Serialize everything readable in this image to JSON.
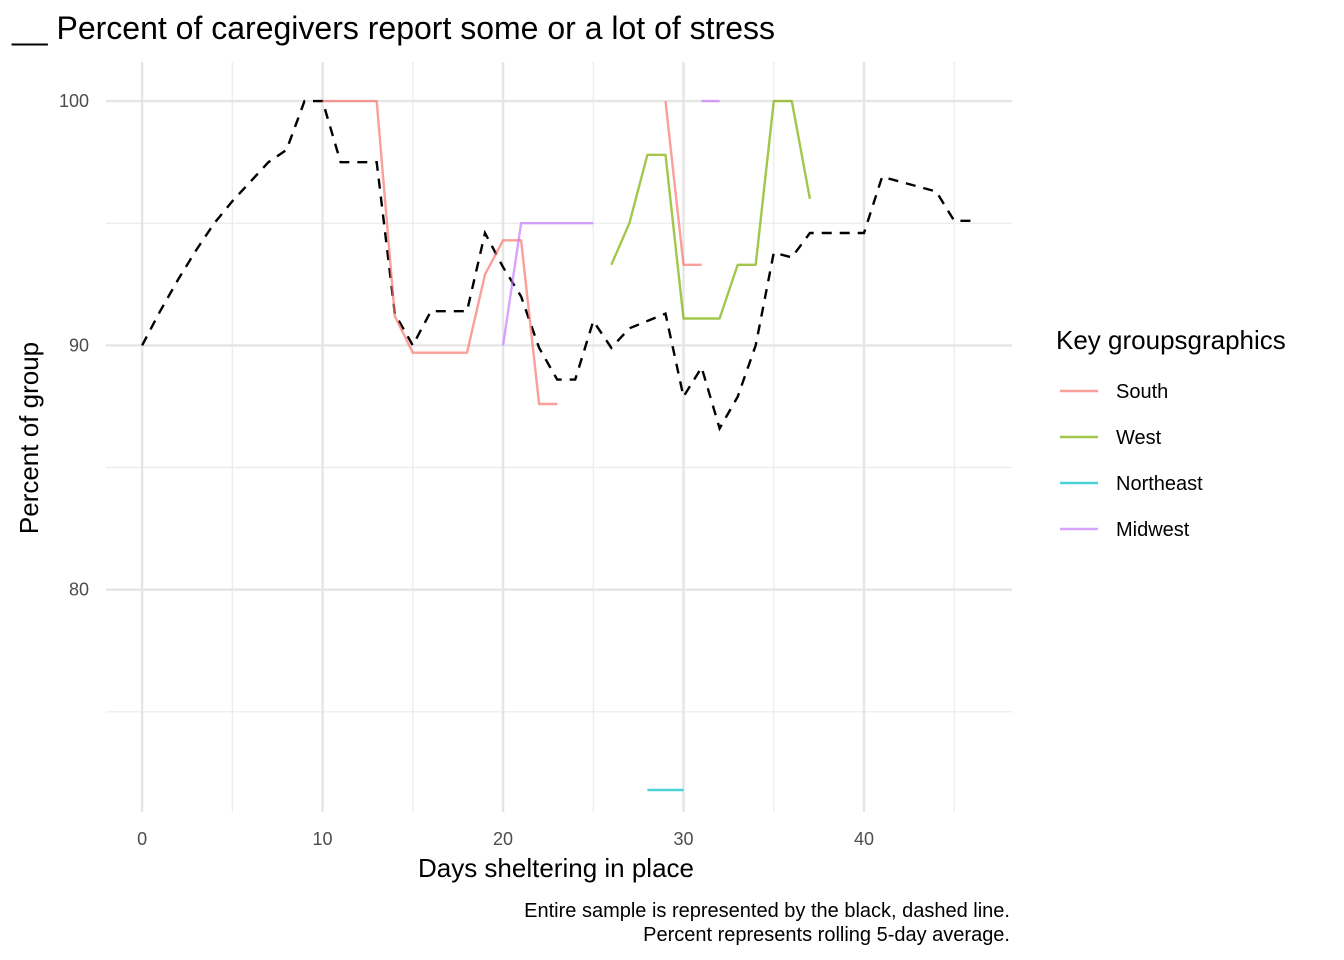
{
  "chart_data": {
    "type": "line",
    "title": "__ Percent of caregivers report some or a lot of stress",
    "xlabel": "Days sheltering in place",
    "ylabel": "Percent of group",
    "caption_lines": [
      "Entire sample is represented by the black, dashed line.",
      "Percent represents rolling 5-day average."
    ],
    "xlim": [
      -2,
      48.2
    ],
    "ylim": [
      70.9,
      101.6
    ],
    "x_major_ticks": [
      0,
      10,
      20,
      30,
      40
    ],
    "x_minor_ticks": [
      5,
      15,
      25,
      35,
      45
    ],
    "y_major_ticks": [
      80,
      90,
      100
    ],
    "y_minor_ticks": [
      75,
      85,
      95
    ],
    "grid": true,
    "legend": {
      "title": "Key groupsgraphics",
      "position": "right",
      "entries": [
        "South",
        "West",
        "Northeast",
        "Midwest"
      ]
    },
    "overall": {
      "line_style": "dashed",
      "color": "#000000",
      "x": [
        0,
        1,
        2,
        3,
        4,
        5,
        6,
        7,
        8,
        9,
        10,
        11,
        12,
        13,
        14,
        15,
        16,
        17,
        18,
        19,
        20,
        21,
        22,
        23,
        24,
        25,
        26,
        27,
        28,
        29,
        30,
        31,
        32,
        33,
        34,
        35,
        36,
        37,
        38,
        39,
        40,
        41,
        42,
        43,
        44,
        45,
        46
      ],
      "y": [
        90.0,
        91.4,
        92.7,
        93.9,
        95.0,
        95.9,
        96.7,
        97.5,
        98.0,
        100.0,
        100.0,
        97.5,
        97.5,
        97.5,
        91.3,
        90.0,
        91.4,
        91.4,
        91.4,
        94.6,
        93.2,
        92.0,
        89.9,
        88.6,
        88.6,
        91.0,
        89.9,
        90.7,
        91.0,
        91.3,
        87.9,
        89.1,
        86.6,
        87.9,
        90.0,
        93.8,
        93.6,
        94.6,
        94.6,
        94.6,
        94.6,
        96.9,
        96.7,
        96.5,
        96.3,
        95.1,
        95.1
      ]
    },
    "series": [
      {
        "name": "South",
        "color": "#F8766D",
        "segments": [
          {
            "x": [
              10,
              11,
              12,
              13,
              14,
              15,
              16,
              17,
              18,
              19,
              20,
              21,
              22,
              23
            ],
            "y": [
              100,
              100,
              100,
              100,
              91.2,
              89.7,
              89.7,
              89.7,
              89.7,
              92.9,
              94.3,
              94.3,
              87.6,
              87.6
            ]
          },
          {
            "x": [
              29,
              30,
              31
            ],
            "y": [
              100,
              93.3,
              93.3
            ]
          }
        ]
      },
      {
        "name": "West",
        "color": "#7CAE00",
        "segments": [
          {
            "x": [
              26,
              27,
              28,
              29,
              30,
              31,
              32,
              33,
              34,
              35,
              36,
              37
            ],
            "y": [
              93.3,
              95.0,
              97.8,
              97.8,
              91.1,
              91.1,
              91.1,
              93.3,
              93.3,
              100,
              100,
              96.0
            ]
          }
        ]
      },
      {
        "name": "Northeast",
        "color": "#00BFC4",
        "segments": [
          {
            "x": [
              28,
              29,
              30
            ],
            "y": [
              71.8,
              71.8,
              71.8
            ]
          }
        ]
      },
      {
        "name": "Midwest",
        "color": "#C77CFF",
        "segments": [
          {
            "x": [
              20,
              21,
              22,
              23,
              24,
              25
            ],
            "y": [
              90,
              95,
              95,
              95,
              95,
              95
            ]
          },
          {
            "x": [
              31,
              32
            ],
            "y": [
              100,
              100
            ]
          }
        ]
      }
    ]
  }
}
